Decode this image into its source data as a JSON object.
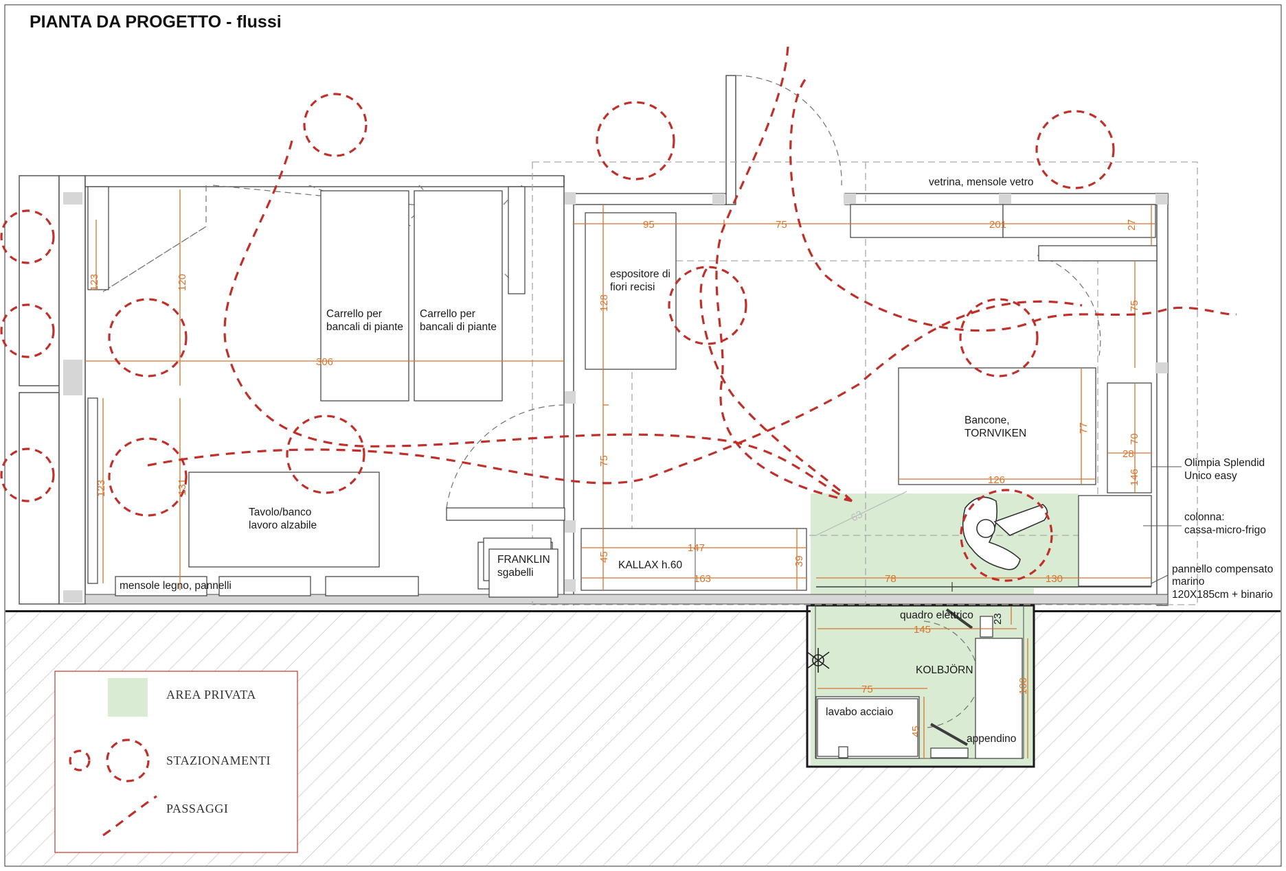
{
  "title": "PIANTA DA PROGETTO - flussi",
  "colors": {
    "flow_red": "#c0302a",
    "dimension_orange": "#d8742c",
    "private_area_green": "#d9ebd3",
    "hatch": "#bdbdbd",
    "legend_border": "#c4433c"
  },
  "labels": {
    "vetrina": "vetrina, mensole vetro",
    "espositore": [
      "espositore di",
      "fiori recisi"
    ],
    "carrello_1": [
      "Carrello per",
      "bancali di piante"
    ],
    "carrello_2": [
      "Carrello per",
      "bancali di piante"
    ],
    "tavolo": [
      "Tavolo/banco",
      "lavoro alzabile"
    ],
    "mensole": "mensole legno, pannelli",
    "franklin": [
      "FRANKLIN",
      "sgabelli"
    ],
    "kallax": "KALLAX h.60",
    "bancone": [
      "Bancone,",
      "TORNVIKEN"
    ],
    "olimpia": [
      "Olimpia Splendid",
      "Unico easy"
    ],
    "colonna": [
      "colonna:",
      "cassa-micro-frigo"
    ],
    "pannello": [
      "pannello compensato",
      "marino",
      "120X185cm + binario"
    ],
    "quadro": "quadro elettrico",
    "kolbjorn": "KOLBJÖRN",
    "lavabo": "lavabo acciaio",
    "appendino": "appendino"
  },
  "dimensions": {
    "d95": "95",
    "d75_top": "75",
    "d201": "201",
    "d27": "27",
    "d120": "120",
    "d123_top": "123",
    "d306": "306",
    "d128": "128",
    "d75_right": "75",
    "d77": "77",
    "d70": "70",
    "d28": "28",
    "d146": "146",
    "d126": "126",
    "d75_mid": "75",
    "d131": "131",
    "d123_bottom": "123",
    "d63": "63",
    "d147": "147",
    "d39": "39",
    "d45_left": "45",
    "d163": "163",
    "d78": "78",
    "d130": "130",
    "d145": "145",
    "d23": "23",
    "d75_bath": "75",
    "d100": "100",
    "d45_bath": "45"
  },
  "legend": {
    "private_area": "AREA PRIVATA",
    "stations": "STAZIONAMENTI",
    "passages": "PASSAGGI"
  }
}
